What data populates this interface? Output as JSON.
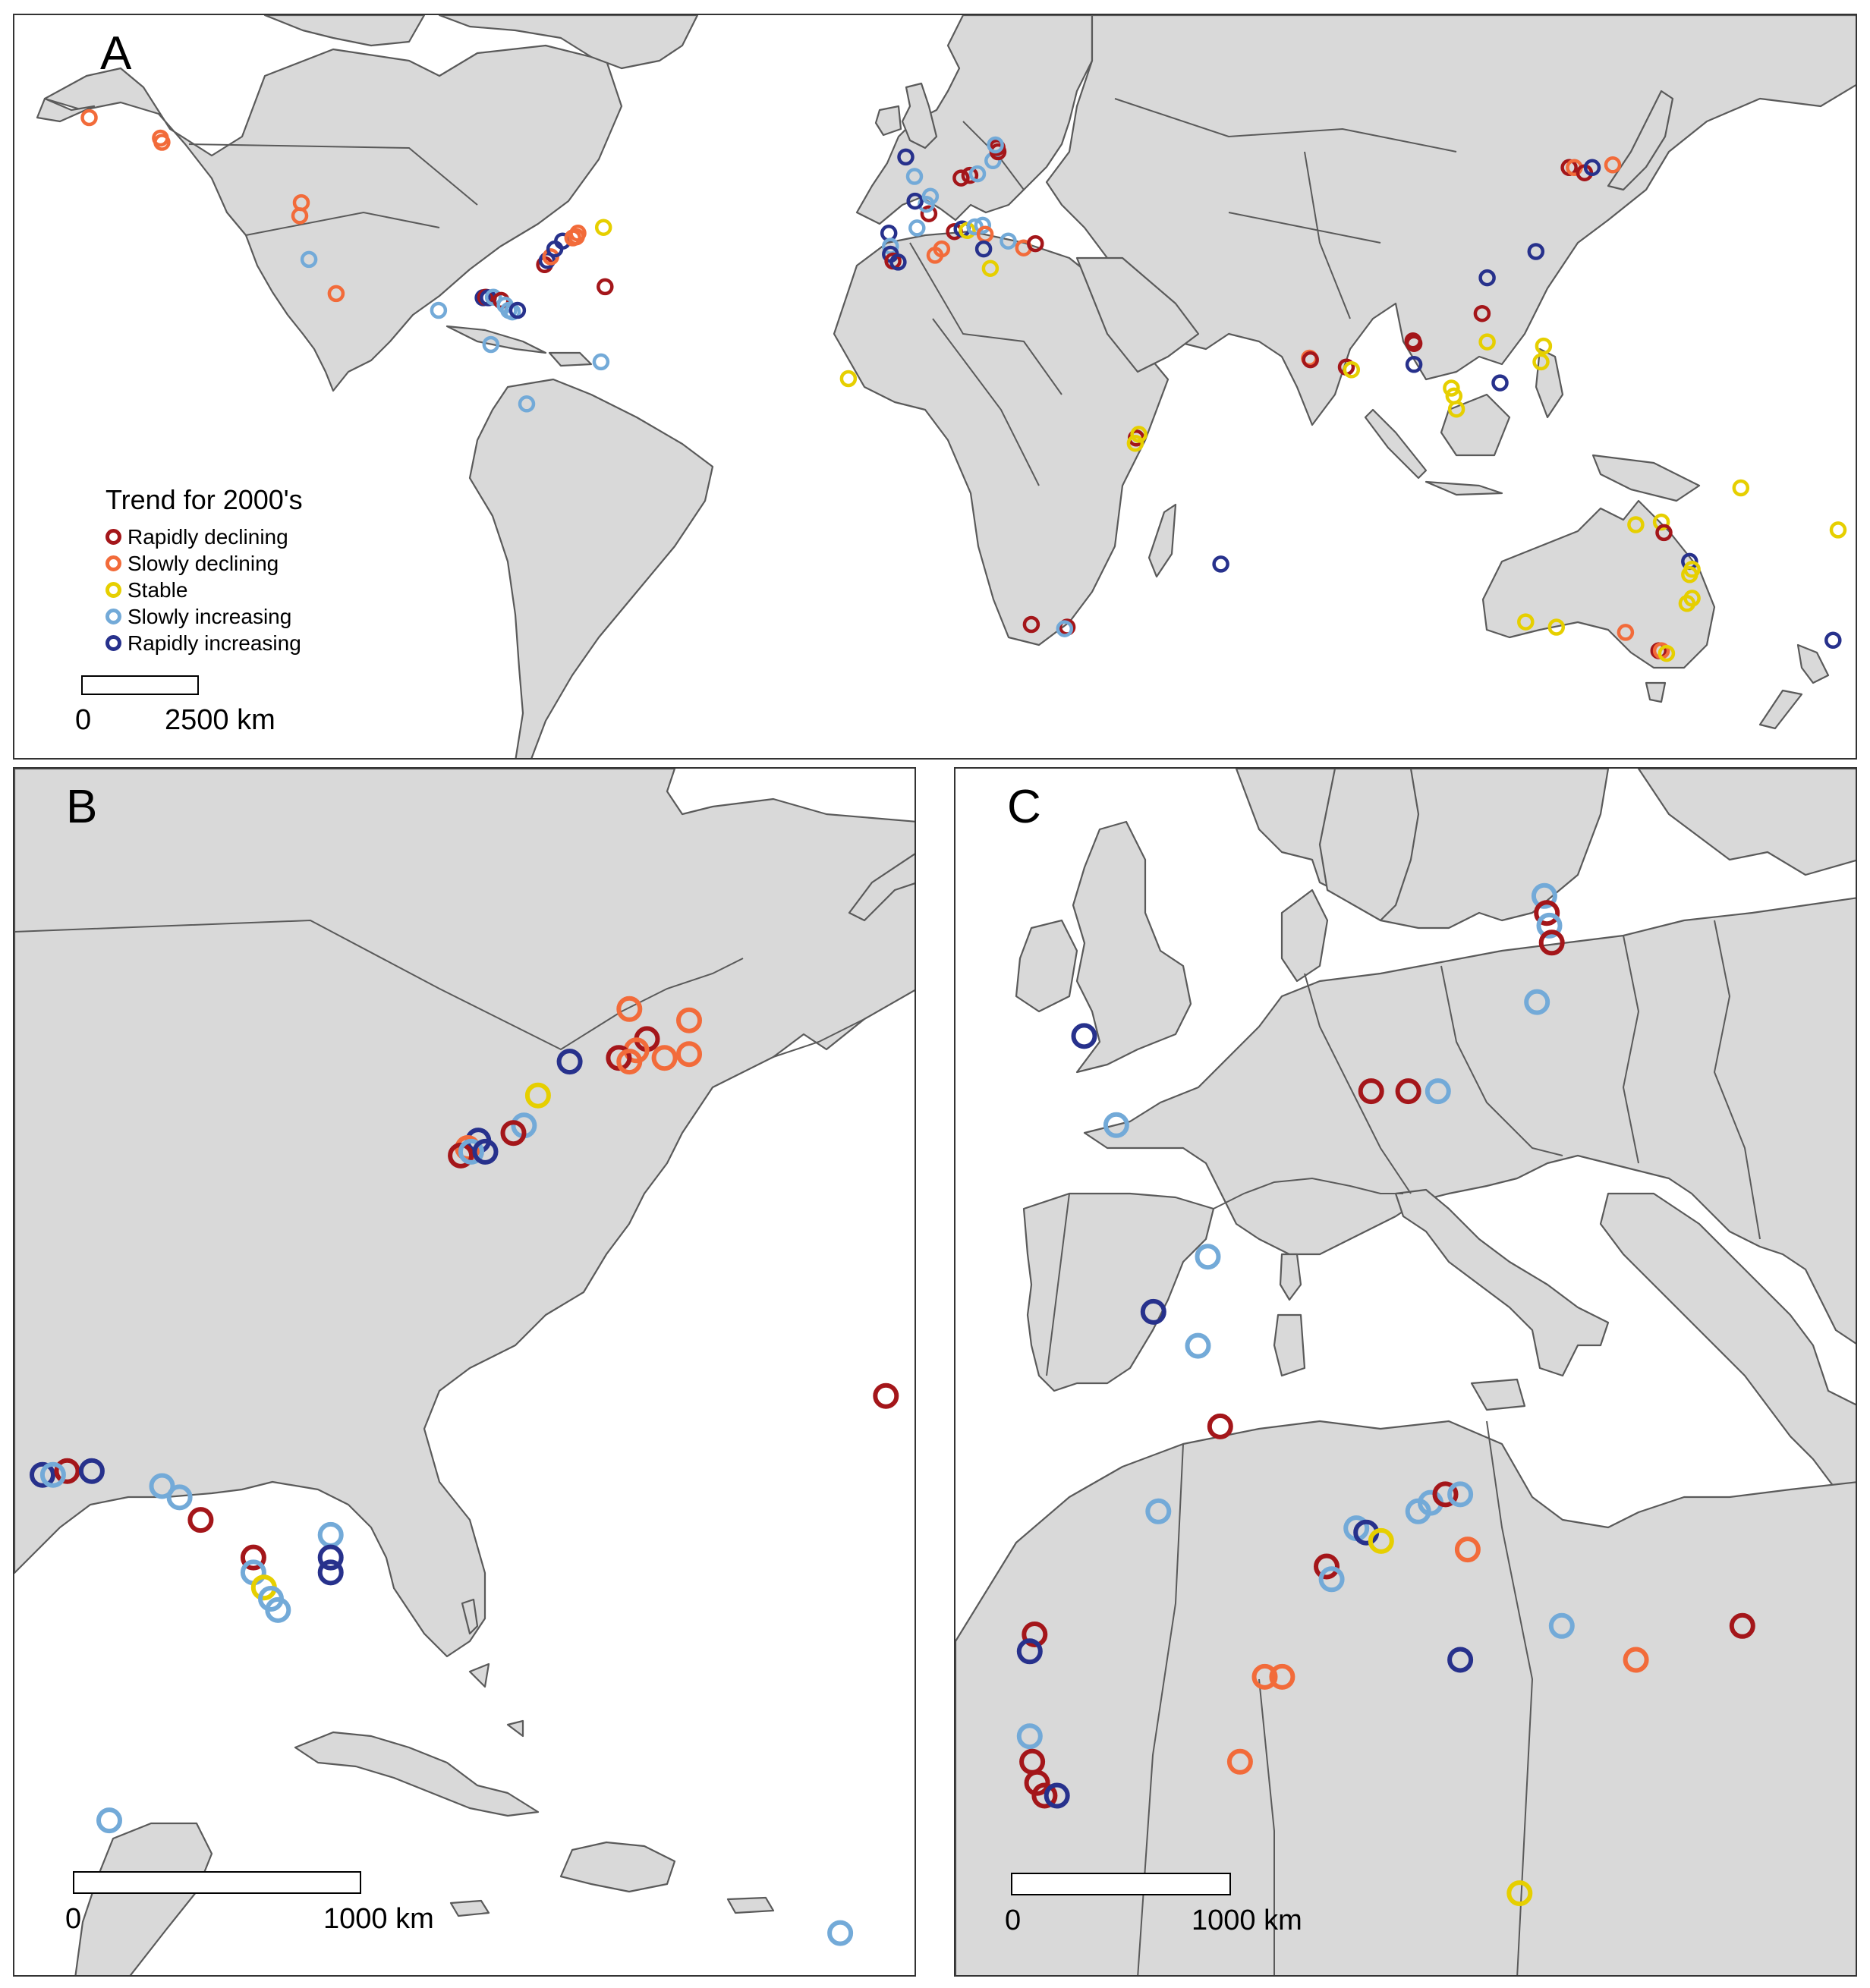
{
  "colors": {
    "rapidly_declining": "#a4161a",
    "slowly_declining": "#f26b3a",
    "stable": "#e6cf00",
    "slowly_increasing": "#73aad8",
    "rapidly_increasing": "#27318c"
  },
  "panels": {
    "a": {
      "label": "A"
    },
    "b": {
      "label": "B"
    },
    "c": {
      "label": "C"
    }
  },
  "legend": {
    "title": "Trend for 2000's",
    "items": [
      {
        "key": "rapidly_declining",
        "label": "Rapidly declining"
      },
      {
        "key": "slowly_declining",
        "label": "Slowly declining"
      },
      {
        "key": "stable",
        "label": "Stable"
      },
      {
        "key": "slowly_increasing",
        "label": "Slowly increasing"
      },
      {
        "key": "rapidly_increasing",
        "label": "Rapidly increasing"
      }
    ]
  },
  "scalebars": {
    "a": {
      "start": "0",
      "end": "2500 km"
    },
    "b": {
      "start": "0",
      "end": "1000 km"
    },
    "c": {
      "start": "0",
      "end": "1000 km"
    }
  },
  "sites": {
    "a": [
      {
        "lon": -165.4,
        "lat": 64.5,
        "trend": "slowly_declining"
      },
      {
        "lon": -151.5,
        "lat": 60.6,
        "trend": "slowly_declining"
      },
      {
        "lon": -151.2,
        "lat": 59.8,
        "trend": "slowly_declining"
      },
      {
        "lon": -124.0,
        "lat": 48.3,
        "trend": "slowly_declining"
      },
      {
        "lon": -124.3,
        "lat": 45.8,
        "trend": "slowly_declining"
      },
      {
        "lon": -122.5,
        "lat": 37.5,
        "trend": "slowly_increasing"
      },
      {
        "lon": -117.2,
        "lat": 31.0,
        "trend": "slowly_declining"
      },
      {
        "lon": -97.2,
        "lat": 27.8,
        "trend": "slowly_increasing"
      },
      {
        "lon": -88.5,
        "lat": 30.2,
        "trend": "rapidly_increasing"
      },
      {
        "lon": -88.0,
        "lat": 30.3,
        "trend": "rapidly_declining"
      },
      {
        "lon": -87.5,
        "lat": 30.2,
        "trend": "rapidly_increasing"
      },
      {
        "lon": -86.5,
        "lat": 30.3,
        "trend": "slowly_increasing"
      },
      {
        "lon": -85.0,
        "lat": 29.7,
        "trend": "rapidly_declining"
      },
      {
        "lon": -84.2,
        "lat": 28.8,
        "trend": "slowly_increasing"
      },
      {
        "lon": -83.5,
        "lat": 27.8,
        "trend": "slowly_increasing"
      },
      {
        "lon": -82.8,
        "lat": 27.5,
        "trend": "slowly_increasing"
      },
      {
        "lon": -81.8,
        "lat": 27.8,
        "trend": "rapidly_increasing"
      },
      {
        "lon": -87.0,
        "lat": 21.3,
        "trend": "slowly_increasing"
      },
      {
        "lon": -76.5,
        "lat": 36.5,
        "trend": "rapidly_declining"
      },
      {
        "lon": -76.0,
        "lat": 37.3,
        "trend": "rapidly_increasing"
      },
      {
        "lon": -75.3,
        "lat": 38.0,
        "trend": "slowly_declining"
      },
      {
        "lon": -74.5,
        "lat": 39.5,
        "trend": "rapidly_increasing"
      },
      {
        "lon": -73.0,
        "lat": 41.0,
        "trend": "rapidly_increasing"
      },
      {
        "lon": -71.0,
        "lat": 41.6,
        "trend": "slowly_declining"
      },
      {
        "lon": -70.3,
        "lat": 41.8,
        "trend": "slowly_declining"
      },
      {
        "lon": -70.0,
        "lat": 42.5,
        "trend": "slowly_declining"
      },
      {
        "lon": -65.0,
        "lat": 43.6,
        "trend": "stable"
      },
      {
        "lon": -64.7,
        "lat": 32.3,
        "trend": "rapidly_declining"
      },
      {
        "lon": -65.5,
        "lat": 18.0,
        "trend": "slowly_increasing"
      },
      {
        "lon": -80.0,
        "lat": 10.0,
        "trend": "slowly_increasing"
      },
      {
        "lon": -17.2,
        "lat": 14.8,
        "trend": "stable"
      },
      {
        "lon": -9.3,
        "lat": 42.5,
        "trend": "rapidly_increasing"
      },
      {
        "lon": -9.0,
        "lat": 40.0,
        "trend": "slowly_increasing"
      },
      {
        "lon": -9.0,
        "lat": 38.5,
        "trend": "rapidly_increasing"
      },
      {
        "lon": -8.5,
        "lat": 37.2,
        "trend": "rapidly_declining"
      },
      {
        "lon": -7.5,
        "lat": 37.0,
        "trend": "rapidly_increasing"
      },
      {
        "lon": -1.5,
        "lat": 46.2,
        "trend": "rapidly_declining"
      },
      {
        "lon": -3.8,
        "lat": 43.5,
        "trend": "slowly_increasing"
      },
      {
        "lon": -2.0,
        "lat": 48.0,
        "trend": "slowly_increasing"
      },
      {
        "lon": -4.2,
        "lat": 48.6,
        "trend": "rapidly_increasing"
      },
      {
        "lon": -1.2,
        "lat": 49.5,
        "trend": "slowly_increasing"
      },
      {
        "lon": -4.3,
        "lat": 53.3,
        "trend": "slowly_increasing"
      },
      {
        "lon": -6.0,
        "lat": 57.0,
        "trend": "rapidly_increasing"
      },
      {
        "lon": 4.8,
        "lat": 53.0,
        "trend": "rapidly_declining"
      },
      {
        "lon": 6.5,
        "lat": 53.5,
        "trend": "rapidly_declining"
      },
      {
        "lon": 8.0,
        "lat": 53.8,
        "trend": "slowly_increasing"
      },
      {
        "lon": 11.0,
        "lat": 56.3,
        "trend": "slowly_increasing"
      },
      {
        "lon": 12.0,
        "lat": 58.0,
        "trend": "rapidly_declining"
      },
      {
        "lon": 11.8,
        "lat": 58.8,
        "trend": "rapidly_declining"
      },
      {
        "lon": 11.5,
        "lat": 59.3,
        "trend": "slowly_increasing"
      },
      {
        "lon": 3.5,
        "lat": 42.8,
        "trend": "rapidly_declining"
      },
      {
        "lon": 5.0,
        "lat": 43.3,
        "trend": "rapidly_increasing"
      },
      {
        "lon": 6.0,
        "lat": 43.0,
        "trend": "stable"
      },
      {
        "lon": 7.5,
        "lat": 43.7,
        "trend": "slowly_increasing"
      },
      {
        "lon": 9.0,
        "lat": 44.0,
        "trend": "slowly_increasing"
      },
      {
        "lon": 9.5,
        "lat": 42.3,
        "trend": "slowly_declining"
      },
      {
        "lon": 9.2,
        "lat": 39.5,
        "trend": "rapidly_increasing"
      },
      {
        "lon": 14.0,
        "lat": 41.0,
        "trend": "slowly_increasing"
      },
      {
        "lon": 17.0,
        "lat": 39.7,
        "trend": "slowly_declining"
      },
      {
        "lon": 19.3,
        "lat": 40.5,
        "trend": "rapidly_declining"
      },
      {
        "lon": 1.0,
        "lat": 39.5,
        "trend": "slowly_declining"
      },
      {
        "lon": -0.3,
        "lat": 38.3,
        "trend": "slowly_declining"
      },
      {
        "lon": 10.5,
        "lat": 35.8,
        "trend": "stable"
      },
      {
        "lon": 72.8,
        "lat": 18.7,
        "trend": "slowly_declining"
      },
      {
        "lon": 73.0,
        "lat": 18.4,
        "trend": "rapidly_declining"
      },
      {
        "lon": 80.0,
        "lat": 17.0,
        "trend": "rapidly_declining"
      },
      {
        "lon": 81.0,
        "lat": 16.5,
        "trend": "stable"
      },
      {
        "lon": 93.0,
        "lat": 22.0,
        "trend": "rapidly_declining"
      },
      {
        "lon": 93.2,
        "lat": 21.5,
        "trend": "rapidly_declining"
      },
      {
        "lon": 93.2,
        "lat": 17.5,
        "trend": "rapidly_increasing"
      },
      {
        "lon": 100.5,
        "lat": 13.0,
        "trend": "stable"
      },
      {
        "lon": 101.0,
        "lat": 11.5,
        "trend": "stable"
      },
      {
        "lon": 101.5,
        "lat": 9.0,
        "trend": "stable"
      },
      {
        "lon": 106.5,
        "lat": 27.2,
        "trend": "rapidly_declining"
      },
      {
        "lon": 107.5,
        "lat": 34.0,
        "trend": "rapidly_increasing"
      },
      {
        "lon": 107.5,
        "lat": 21.8,
        "trend": "stable"
      },
      {
        "lon": 110.0,
        "lat": 14.0,
        "trend": "rapidly_increasing"
      },
      {
        "lon": 117.0,
        "lat": 39.0,
        "trend": "rapidly_increasing"
      },
      {
        "lon": 118.5,
        "lat": 21.0,
        "trend": "stable"
      },
      {
        "lon": 118.0,
        "lat": 18.0,
        "trend": "stable"
      },
      {
        "lon": 123.5,
        "lat": 55.0,
        "trend": "rapidly_declining"
      },
      {
        "lon": 124.5,
        "lat": 55.0,
        "trend": "slowly_declining"
      },
      {
        "lon": 126.5,
        "lat": 54.0,
        "trend": "rapidly_declining"
      },
      {
        "lon": 128.0,
        "lat": 55.0,
        "trend": "rapidly_increasing"
      },
      {
        "lon": 132.0,
        "lat": 55.5,
        "trend": "slowly_declining"
      },
      {
        "lon": 39.0,
        "lat": 3.5,
        "trend": "rapidly_declining"
      },
      {
        "lon": 39.5,
        "lat": 4.2,
        "trend": "stable"
      },
      {
        "lon": 38.8,
        "lat": 2.5,
        "trend": "stable"
      },
      {
        "lon": 55.5,
        "lat": -20.5,
        "trend": "rapidly_increasing"
      },
      {
        "lon": 18.5,
        "lat": -32.0,
        "trend": "rapidly_declining"
      },
      {
        "lon": 25.5,
        "lat": -32.5,
        "trend": "rapidly_declining"
      },
      {
        "lon": 25.0,
        "lat": -32.8,
        "trend": "slowly_increasing"
      },
      {
        "lon": 115.0,
        "lat": -31.5,
        "trend": "stable"
      },
      {
        "lon": 121.0,
        "lat": -32.5,
        "trend": "stable"
      },
      {
        "lon": 136.5,
        "lat": -13.0,
        "trend": "stable"
      },
      {
        "lon": 141.5,
        "lat": -12.5,
        "trend": "stable"
      },
      {
        "lon": 142.0,
        "lat": -14.5,
        "trend": "rapidly_declining"
      },
      {
        "lon": 147.0,
        "lat": -20.0,
        "trend": "rapidly_increasing"
      },
      {
        "lon": 147.5,
        "lat": -21.5,
        "trend": "stable"
      },
      {
        "lon": 147.0,
        "lat": -22.5,
        "trend": "stable"
      },
      {
        "lon": 147.5,
        "lat": -27.0,
        "trend": "stable"
      },
      {
        "lon": 146.5,
        "lat": -28.0,
        "trend": "stable"
      },
      {
        "lon": 134.5,
        "lat": -33.5,
        "trend": "slowly_declining"
      },
      {
        "lon": 141.0,
        "lat": -37.0,
        "trend": "rapidly_declining"
      },
      {
        "lon": 141.5,
        "lat": -37.0,
        "trend": "slowly_declining"
      },
      {
        "lon": 142.5,
        "lat": -37.5,
        "trend": "stable"
      },
      {
        "lon": 157.0,
        "lat": -6.0,
        "trend": "stable"
      },
      {
        "lon": 176.0,
        "lat": -14.0,
        "trend": "stable"
      },
      {
        "lon": 175.0,
        "lat": -35.0,
        "trend": "rapidly_increasing"
      }
    ],
    "b": [
      {
        "lon": -72.0,
        "lat": 42.6,
        "trend": "slowly_declining"
      },
      {
        "lon": -70.3,
        "lat": 42.3,
        "trend": "slowly_declining"
      },
      {
        "lon": -71.5,
        "lat": 41.8,
        "trend": "rapidly_declining"
      },
      {
        "lon": -71.8,
        "lat": 41.5,
        "trend": "slowly_declining"
      },
      {
        "lon": -72.3,
        "lat": 41.3,
        "trend": "rapidly_declining"
      },
      {
        "lon": -71.0,
        "lat": 41.3,
        "trend": "slowly_declining"
      },
      {
        "lon": -70.3,
        "lat": 41.4,
        "trend": "slowly_declining"
      },
      {
        "lon": -73.7,
        "lat": 41.2,
        "trend": "rapidly_increasing"
      },
      {
        "lon": -72.0,
        "lat": 41.2,
        "trend": "slowly_declining"
      },
      {
        "lon": -74.6,
        "lat": 40.3,
        "trend": "stable"
      },
      {
        "lon": -75.0,
        "lat": 39.5,
        "trend": "slowly_increasing"
      },
      {
        "lon": -75.3,
        "lat": 39.3,
        "trend": "rapidly_declining"
      },
      {
        "lon": -76.3,
        "lat": 39.1,
        "trend": "rapidly_increasing"
      },
      {
        "lon": -76.6,
        "lat": 38.9,
        "trend": "slowly_declining"
      },
      {
        "lon": -76.8,
        "lat": 38.7,
        "trend": "rapidly_declining"
      },
      {
        "lon": -76.5,
        "lat": 38.8,
        "trend": "slowly_increasing"
      },
      {
        "lon": -76.1,
        "lat": 38.8,
        "trend": "rapidly_increasing"
      },
      {
        "lon": -64.7,
        "lat": 32.3,
        "trend": "rapidly_declining"
      },
      {
        "lon": -88.7,
        "lat": 30.2,
        "trend": "rapidly_increasing"
      },
      {
        "lon": -88.0,
        "lat": 30.3,
        "trend": "rapidly_declining"
      },
      {
        "lon": -87.3,
        "lat": 30.3,
        "trend": "rapidly_increasing"
      },
      {
        "lon": -88.4,
        "lat": 30.2,
        "trend": "slowly_increasing"
      },
      {
        "lon": -85.3,
        "lat": 29.9,
        "trend": "slowly_increasing"
      },
      {
        "lon": -84.8,
        "lat": 29.6,
        "trend": "slowly_increasing"
      },
      {
        "lon": -84.2,
        "lat": 29.0,
        "trend": "rapidly_declining"
      },
      {
        "lon": -82.7,
        "lat": 28.0,
        "trend": "rapidly_declining"
      },
      {
        "lon": -82.7,
        "lat": 27.6,
        "trend": "slowly_increasing"
      },
      {
        "lon": -82.4,
        "lat": 27.2,
        "trend": "stable"
      },
      {
        "lon": -82.2,
        "lat": 26.9,
        "trend": "slowly_increasing"
      },
      {
        "lon": -82.0,
        "lat": 26.6,
        "trend": "slowly_increasing"
      },
      {
        "lon": -80.5,
        "lat": 28.6,
        "trend": "slowly_increasing"
      },
      {
        "lon": -80.5,
        "lat": 28.0,
        "trend": "rapidly_increasing"
      },
      {
        "lon": -80.5,
        "lat": 27.6,
        "trend": "rapidly_increasing"
      },
      {
        "lon": -86.8,
        "lat": 21.0,
        "trend": "slowly_increasing"
      },
      {
        "lon": -66.0,
        "lat": 18.0,
        "trend": "slowly_increasing"
      }
    ],
    "c": [
      {
        "lon": 11.8,
        "lat": 59.0,
        "trend": "slowly_increasing"
      },
      {
        "lon": 11.9,
        "lat": 58.6,
        "trend": "rapidly_declining"
      },
      {
        "lon": 12.0,
        "lat": 58.3,
        "trend": "slowly_increasing"
      },
      {
        "lon": 12.1,
        "lat": 57.9,
        "trend": "rapidly_declining"
      },
      {
        "lon": 11.5,
        "lat": 56.5,
        "trend": "slowly_increasing"
      },
      {
        "lon": -6.8,
        "lat": 55.7,
        "trend": "rapidly_increasing"
      },
      {
        "lon": -5.5,
        "lat": 53.6,
        "trend": "slowly_increasing"
      },
      {
        "lon": 4.8,
        "lat": 54.4,
        "trend": "rapidly_declining"
      },
      {
        "lon": 6.3,
        "lat": 54.4,
        "trend": "rapidly_declining"
      },
      {
        "lon": 7.5,
        "lat": 54.4,
        "trend": "slowly_increasing"
      },
      {
        "lon": -1.8,
        "lat": 50.5,
        "trend": "slowly_increasing"
      },
      {
        "lon": -4.0,
        "lat": 49.2,
        "trend": "rapidly_increasing"
      },
      {
        "lon": -2.2,
        "lat": 48.4,
        "trend": "slowly_increasing"
      },
      {
        "lon": -1.3,
        "lat": 46.5,
        "trend": "rapidly_declining"
      },
      {
        "lon": -3.8,
        "lat": 44.5,
        "trend": "slowly_increasing"
      },
      {
        "lon": 3.0,
        "lat": 43.2,
        "trend": "rapidly_declining"
      },
      {
        "lon": 3.2,
        "lat": 42.9,
        "trend": "slowly_increasing"
      },
      {
        "lon": 4.2,
        "lat": 44.1,
        "trend": "slowly_increasing"
      },
      {
        "lon": 4.6,
        "lat": 44.0,
        "trend": "rapidly_increasing"
      },
      {
        "lon": 5.2,
        "lat": 43.8,
        "trend": "stable"
      },
      {
        "lon": 6.7,
        "lat": 44.5,
        "trend": "slowly_increasing"
      },
      {
        "lon": 7.2,
        "lat": 44.7,
        "trend": "slowly_increasing"
      },
      {
        "lon": 7.8,
        "lat": 44.9,
        "trend": "rapidly_declining"
      },
      {
        "lon": 8.4,
        "lat": 44.9,
        "trend": "slowly_increasing"
      },
      {
        "lon": 8.7,
        "lat": 43.6,
        "trend": "slowly_declining"
      },
      {
        "lon": 8.4,
        "lat": 41.0,
        "trend": "rapidly_increasing"
      },
      {
        "lon": 12.5,
        "lat": 41.8,
        "trend": "slowly_increasing"
      },
      {
        "lon": 15.5,
        "lat": 41.0,
        "trend": "slowly_declining"
      },
      {
        "lon": 19.8,
        "lat": 41.8,
        "trend": "rapidly_declining"
      },
      {
        "lon": 0.5,
        "lat": 40.6,
        "trend": "slowly_declining"
      },
      {
        "lon": 1.2,
        "lat": 40.6,
        "trend": "slowly_declining"
      },
      {
        "lon": -0.5,
        "lat": 38.6,
        "trend": "slowly_declining"
      },
      {
        "lon": -8.8,
        "lat": 41.6,
        "trend": "rapidly_declining"
      },
      {
        "lon": -9.0,
        "lat": 41.2,
        "trend": "rapidly_increasing"
      },
      {
        "lon": -9.0,
        "lat": 39.2,
        "trend": "slowly_increasing"
      },
      {
        "lon": -8.9,
        "lat": 38.6,
        "trend": "rapidly_declining"
      },
      {
        "lon": -8.7,
        "lat": 38.1,
        "trend": "rapidly_declining"
      },
      {
        "lon": -8.4,
        "lat": 37.8,
        "trend": "rapidly_declining"
      },
      {
        "lon": -7.9,
        "lat": 37.8,
        "trend": "rapidly_increasing"
      },
      {
        "lon": 10.8,
        "lat": 35.5,
        "trend": "stable"
      }
    ]
  }
}
